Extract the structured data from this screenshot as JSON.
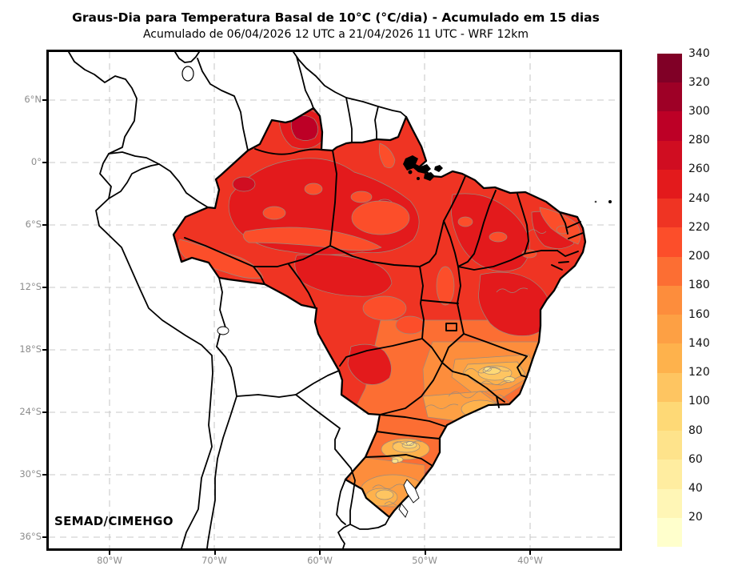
{
  "title": "Graus-Dia para Temperatura Basal de 10°C (°C/dia) - Acumulado em 15 dias",
  "subtitle": "Acumulado de 06/04/2026 12 UTC a 21/04/2026 11 UTC - WRF 12km",
  "credit": "SEMAD/CIMEHGO",
  "axes": {
    "lat_ticks": [
      "6°N",
      "0°",
      "6°S",
      "12°S",
      "18°S",
      "24°S",
      "30°S",
      "36°S"
    ],
    "lon_ticks": [
      "80°W",
      "70°W",
      "60°W",
      "50°W",
      "40°W"
    ]
  },
  "colorbar": {
    "title": "",
    "ticks": [
      "340",
      "320",
      "300",
      "280",
      "260",
      "240",
      "220",
      "200",
      "180",
      "160",
      "140",
      "120",
      "100",
      "80",
      "60",
      "40",
      "20"
    ],
    "segment_colors_top_to_bottom": [
      "#800026",
      "#9e0026",
      "#bd0026",
      "#d00d21",
      "#e31a1c",
      "#ef3423",
      "#fc4e2a",
      "#fc6e33",
      "#fd8d3c",
      "#fda044",
      "#feb24c",
      "#fec561",
      "#fed976",
      "#fee38b",
      "#ffeda0",
      "#fff6b6",
      "#ffffcc"
    ]
  },
  "map": {
    "region_shown": "Brasil / América do Sul",
    "grid_color": "#c9c9c9",
    "land_color": "#ffffff",
    "coast_color": "#000000",
    "contour_line_color": "#9a8a7e"
  }
}
